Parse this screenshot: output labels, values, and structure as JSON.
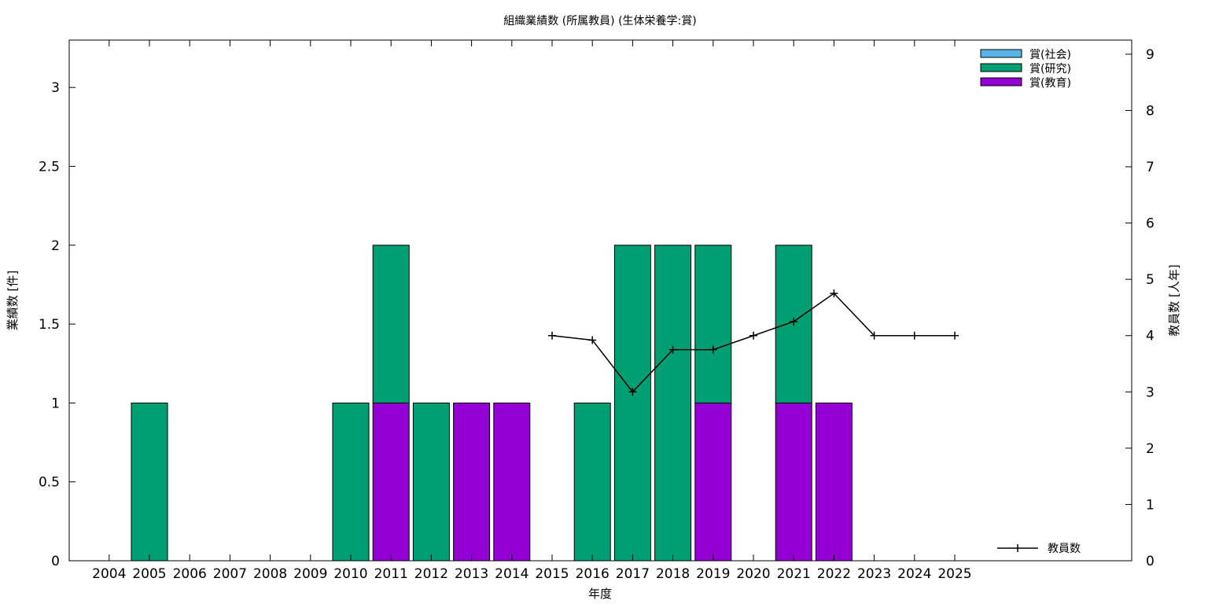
{
  "chart_data": {
    "type": "bar",
    "title": "組織業績数 (所属教員) (生体栄養学:賞)",
    "xlabel": "年度",
    "ylabel": "業績数 [件]",
    "y2label": "教員数 [人年]",
    "categories": [
      "2004",
      "2005",
      "2006",
      "2007",
      "2008",
      "2009",
      "2010",
      "2011",
      "2012",
      "2013",
      "2014",
      "2015",
      "2016",
      "2017",
      "2018",
      "2019",
      "2020",
      "2021",
      "2022",
      "2023",
      "2024",
      "2025"
    ],
    "stacked": true,
    "ylim": [
      0,
      3.3
    ],
    "yticks": [
      0,
      0.5,
      1,
      1.5,
      2,
      2.5,
      3
    ],
    "ytick_labels": [
      "0",
      "0.5",
      "1",
      "1.5",
      "2",
      "2.5",
      "3"
    ],
    "y2lim": [
      0,
      9.25
    ],
    "y2ticks": [
      0,
      1,
      2,
      3,
      4,
      5,
      6,
      7,
      8,
      9
    ],
    "series": [
      {
        "name": "賞(教育)",
        "color": "#9400d3",
        "values": [
          0,
          0,
          0,
          0,
          0,
          0,
          0,
          1,
          0,
          1,
          1,
          0,
          0,
          0,
          0,
          1,
          0,
          1,
          1,
          0,
          0,
          0
        ]
      },
      {
        "name": "賞(研究)",
        "color": "#009e73",
        "values": [
          0,
          1,
          0,
          0,
          0,
          0,
          1,
          1,
          1,
          0,
          0,
          0,
          1,
          2,
          2,
          1,
          0,
          1,
          0,
          0,
          0,
          0
        ]
      },
      {
        "name": "賞(社会)",
        "color": "#56b4e9",
        "values": [
          0,
          0,
          0,
          0,
          0,
          0,
          0,
          0,
          0,
          0,
          0,
          0,
          0,
          0,
          0,
          0,
          0,
          0,
          0,
          0,
          0,
          0
        ]
      }
    ],
    "line_series": {
      "name": "教員数",
      "axis": "y2",
      "color": "#000000",
      "x": [
        "2015",
        "2016",
        "2017",
        "2018",
        "2019",
        "2020",
        "2021",
        "2022",
        "2023",
        "2024",
        "2025"
      ],
      "values": [
        4,
        3.92,
        3,
        3.75,
        3.75,
        4,
        4.25,
        4.75,
        4,
        4,
        4
      ]
    },
    "legend": {
      "position": "top-right",
      "line_position": "bottom-right"
    },
    "grid": false
  }
}
